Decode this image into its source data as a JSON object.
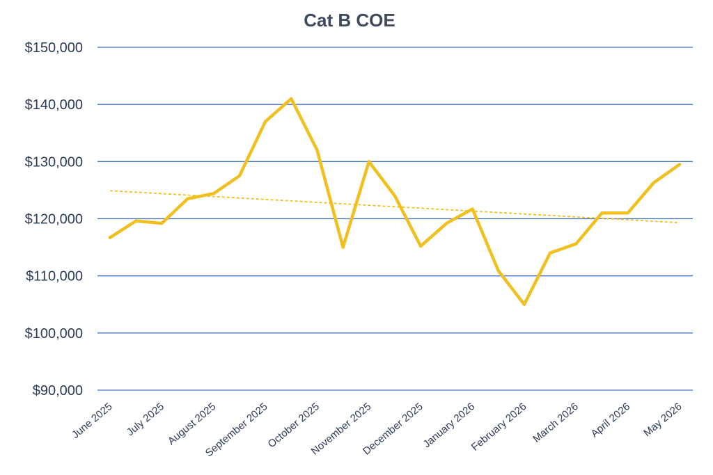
{
  "chart_data": {
    "type": "line",
    "title": "Cat B COE",
    "xlabel": "",
    "ylabel": "",
    "ylim": [
      90000,
      150000
    ],
    "yticks": [
      90000,
      100000,
      110000,
      120000,
      130000,
      140000,
      150000
    ],
    "ytick_labels": [
      "$90,000",
      "$100,000",
      "$110,000",
      "$120,000",
      "$130,000",
      "$140,000",
      "$150,000"
    ],
    "x_tick_labels": [
      "June 2025",
      "July 2025",
      "August 2025",
      "September 2025",
      "October 2025",
      "November 2025",
      "December 2025",
      "January 2026",
      "February 2026",
      "March 2026",
      "April 2026",
      "May 2026"
    ],
    "grid": true,
    "legend": "none",
    "colors": {
      "series": "#f0c020",
      "trend": "#f0c020",
      "grid": "#4472c4",
      "text": "#2b3a55"
    },
    "series": [
      {
        "values": [
          116700,
          119600,
          119200,
          123500,
          124400,
          127500,
          137000,
          141000,
          132000,
          115000,
          130000,
          124000,
          115200,
          119200,
          121700,
          110900,
          105000,
          114000,
          115600,
          121000,
          121000,
          126300,
          129500
        ]
      }
    ],
    "trendline": {
      "type": "linear",
      "start": 124900,
      "end": 119300
    }
  }
}
